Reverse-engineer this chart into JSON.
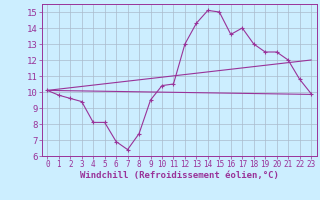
{
  "bg_color": "#cceeff",
  "grid_color": "#aabbcc",
  "line_color": "#993399",
  "xlabel": "Windchill (Refroidissement éolien,°C)",
  "xlabel_fontsize": 6.5,
  "ytick_fontsize": 6.5,
  "xtick_fontsize": 5.5,
  "ylim": [
    6,
    15.5
  ],
  "xlim": [
    -0.5,
    23.5
  ],
  "yticks": [
    6,
    7,
    8,
    9,
    10,
    11,
    12,
    13,
    14,
    15
  ],
  "xticks": [
    0,
    1,
    2,
    3,
    4,
    5,
    6,
    7,
    8,
    9,
    10,
    11,
    12,
    13,
    14,
    15,
    16,
    17,
    18,
    19,
    20,
    21,
    22,
    23
  ],
  "curve1_x": [
    0,
    1,
    2,
    3,
    4,
    5,
    6,
    7,
    8,
    9,
    10,
    11,
    12,
    13,
    14,
    15,
    16,
    17,
    18,
    19,
    20,
    21,
    22,
    23
  ],
  "curve1_y": [
    10.1,
    9.8,
    9.6,
    9.4,
    8.1,
    8.1,
    6.9,
    6.4,
    7.4,
    9.5,
    10.4,
    10.5,
    13.0,
    14.3,
    15.1,
    15.0,
    13.6,
    14.0,
    13.0,
    12.5,
    12.5,
    12.0,
    10.8,
    9.9
  ],
  "curve2_x": [
    0,
    23
  ],
  "curve2_y": [
    10.1,
    12.0
  ],
  "curve3_x": [
    0,
    23
  ],
  "curve3_y": [
    10.1,
    9.85
  ]
}
